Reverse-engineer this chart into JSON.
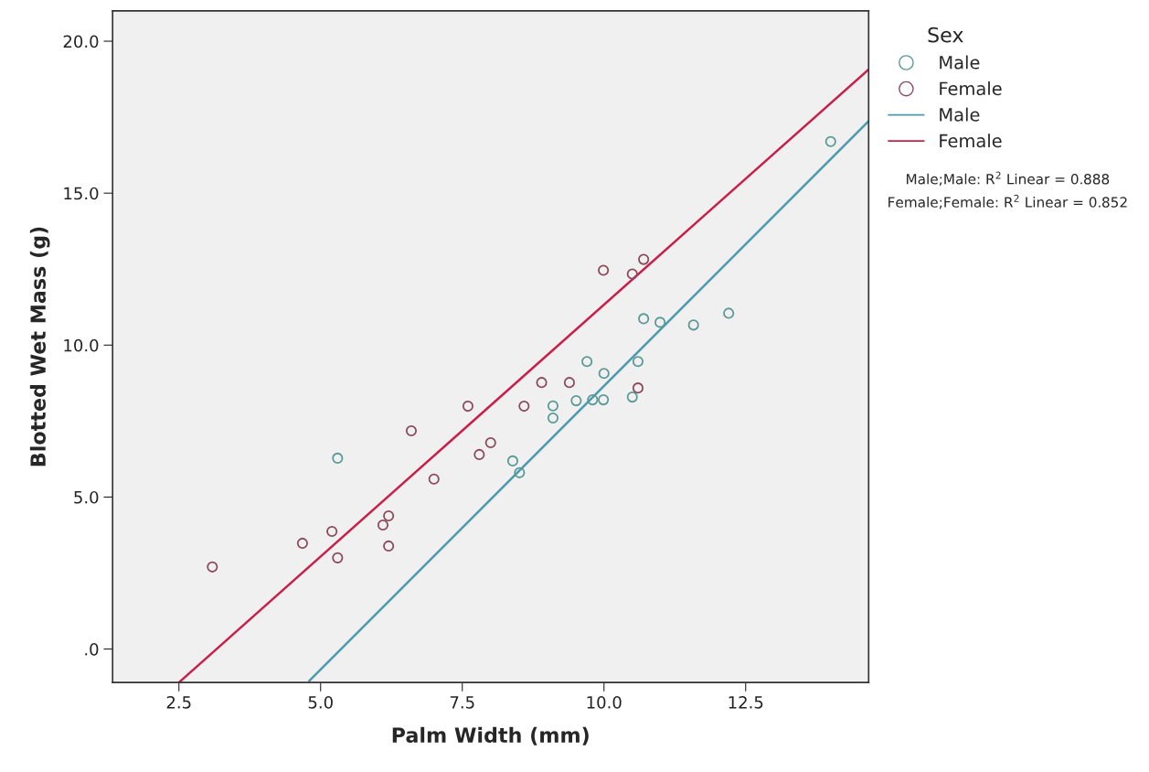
{
  "chart_data": {
    "type": "scatter",
    "xlabel": "Palm Width (mm)",
    "ylabel": "Blotted Wet Mass (g)",
    "legend_title": "Sex",
    "xlim": [
      1.33,
      14.67
    ],
    "ylim": [
      -1.1,
      21.0
    ],
    "xticks": [
      2.5,
      {
        "value": 5,
        "label": "5.0"
      },
      7.5,
      {
        "value": 10,
        "label": "10.0"
      },
      12.5
    ],
    "yticks": [
      {
        "value": 0,
        "label": ".0"
      },
      {
        "value": 5,
        "label": "5.0"
      },
      {
        "value": 10,
        "label": "10.0"
      },
      {
        "value": 15,
        "label": "15.0"
      },
      {
        "value": 20,
        "label": "20.0"
      }
    ],
    "grid": false,
    "legend": "right",
    "series": [
      {
        "name": "Male",
        "marker": "circle",
        "color": "#5a9a96",
        "x": [
          5.3,
          8.39,
          8.51,
          9.1,
          9.1,
          9.51,
          9.7,
          9.8,
          9.99,
          10.0,
          10.5,
          10.6,
          10.7,
          10.99,
          11.58,
          12.2,
          14.0
        ],
        "values": [
          6.28,
          6.19,
          5.8,
          8.0,
          7.6,
          8.17,
          9.46,
          8.2,
          8.2,
          9.07,
          8.29,
          9.46,
          10.87,
          10.75,
          10.66,
          11.05,
          16.7
        ]
      },
      {
        "name": "Female",
        "marker": "circle",
        "color": "#8b4a5c",
        "x": [
          3.09,
          4.68,
          5.2,
          5.3,
          6.1,
          6.2,
          6.2,
          6.6,
          7.0,
          7.6,
          7.8,
          8.0,
          8.59,
          8.9,
          9.39,
          9.99,
          10.5,
          10.6,
          10.7
        ],
        "values": [
          2.7,
          3.48,
          3.87,
          3.0,
          4.08,
          4.38,
          3.39,
          7.18,
          5.59,
          7.99,
          6.4,
          6.79,
          7.99,
          8.77,
          8.77,
          12.46,
          12.34,
          8.59,
          12.82
        ]
      },
      {
        "name": "Male",
        "type": "line",
        "marker": "none",
        "color": "#4a9ab0",
        "x": [
          4.8,
          14.67
        ],
        "values": [
          -1.05,
          17.37
        ]
      },
      {
        "name": "Female",
        "type": "line",
        "marker": "none",
        "color": "#c8204a",
        "x": [
          2.5,
          14.67
        ],
        "values": [
          -1.1,
          19.07
        ]
      }
    ],
    "annotations": [
      "Male;Male: R$^{2}$ Linear = 0.888",
      "Female;Female: R$^{2}$ Linear = 0.852"
    ]
  }
}
